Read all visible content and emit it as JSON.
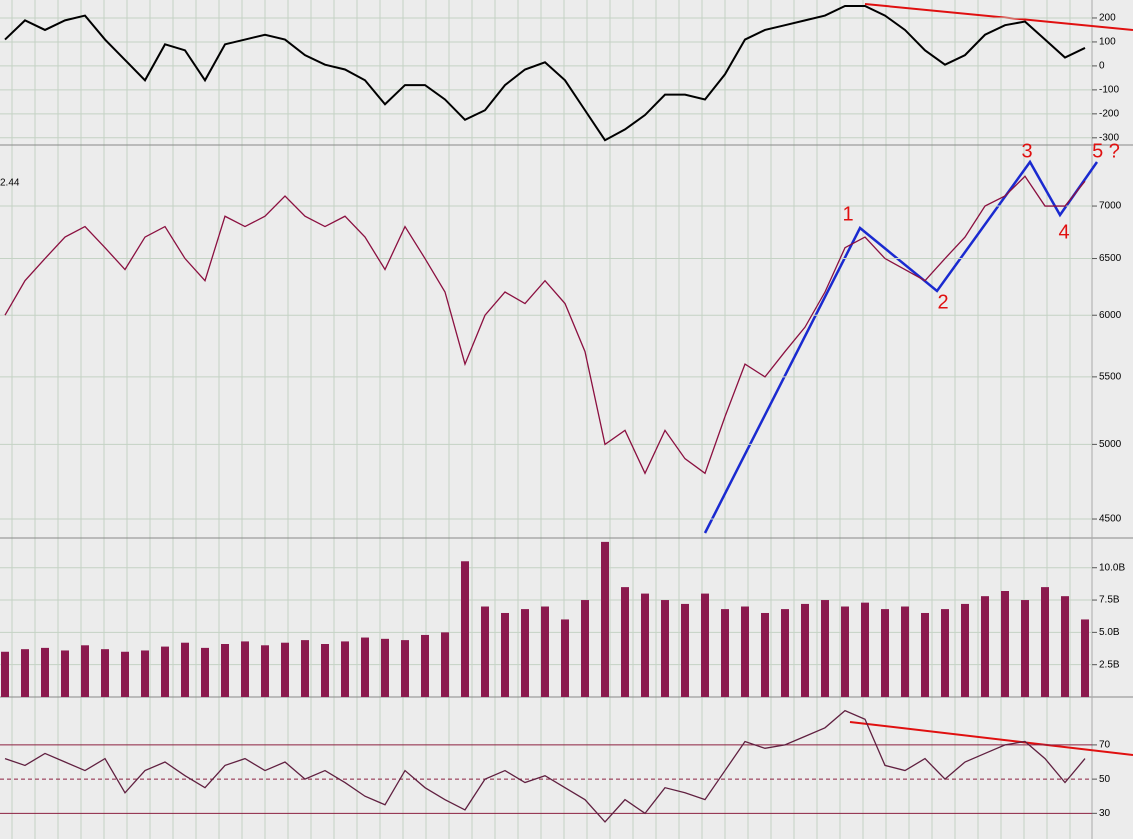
{
  "chart_data": [
    {
      "type": "line",
      "color": "#000000",
      "values": [
        110,
        190,
        150,
        190,
        210,
        110,
        25,
        -60,
        90,
        65,
        -60,
        90,
        110,
        130,
        110,
        45,
        5,
        -15,
        -60,
        -160,
        -80,
        -80,
        -140,
        -225,
        -185,
        -80,
        -15,
        15,
        -60,
        -185,
        -310,
        -265,
        -205,
        -120,
        -120,
        -140,
        -35,
        110,
        150,
        170,
        190,
        210,
        250,
        250,
        210,
        150,
        65,
        5,
        45,
        130,
        170,
        185,
        110,
        35,
        75
      ],
      "ylim": [
        -330,
        275
      ],
      "yticks": [
        200,
        100,
        0,
        -100,
        -200,
        -300
      ],
      "grid": true
    },
    {
      "type": "line",
      "color": "#8b1040",
      "log": true,
      "values": [
        6000,
        6300,
        6500,
        6700,
        6800,
        6600,
        6400,
        6700,
        6800,
        6500,
        6300,
        6900,
        6800,
        6900,
        7100,
        6900,
        6800,
        6900,
        6700,
        6400,
        6800,
        6500,
        6200,
        5600,
        6000,
        6200,
        6100,
        6300,
        6100,
        5700,
        5000,
        5100,
        4800,
        5100,
        4900,
        4800,
        5200,
        5600,
        5500,
        5700,
        5900,
        6200,
        6600,
        6700,
        6500,
        6400,
        6300,
        6500,
        6700,
        7000,
        7100,
        7300,
        7000,
        7000,
        7250
      ],
      "ylim": [
        4381,
        7630
      ],
      "yticks": [
        4500,
        5000,
        5500,
        6000,
        6500,
        7000
      ],
      "grid": true,
      "annotations": [
        "1",
        "2",
        "3",
        "4",
        "5 ?",
        "2.44"
      ]
    },
    {
      "type": "bar",
      "color": "#8b1a4e",
      "values": [
        3.5,
        3.7,
        3.8,
        3.6,
        4.0,
        3.7,
        3.5,
        3.6,
        3.9,
        4.2,
        3.8,
        4.1,
        4.3,
        4.0,
        4.2,
        4.4,
        4.1,
        4.3,
        4.6,
        4.5,
        4.4,
        4.8,
        5.0,
        10.5,
        7.0,
        6.5,
        6.8,
        7.0,
        6.0,
        7.5,
        12.0,
        8.5,
        8.0,
        7.5,
        7.2,
        8.0,
        6.8,
        7.0,
        6.5,
        6.8,
        7.2,
        7.5,
        7.0,
        7.3,
        6.8,
        7.0,
        6.5,
        6.8,
        7.2,
        7.8,
        8.2,
        7.5,
        8.5,
        7.8,
        6.0
      ],
      "ylim": [
        0,
        12.3
      ],
      "yticks": [
        {
          "value": 10,
          "label": "10.0B"
        },
        {
          "value": 7.5,
          "label": "7.5B"
        },
        {
          "value": 5,
          "label": "5.0B"
        },
        {
          "value": 2.5,
          "label": "2.5B"
        }
      ],
      "grid": true
    },
    {
      "type": "line",
      "color": "#602040",
      "values": [
        62,
        58,
        65,
        60,
        55,
        62,
        42,
        55,
        60,
        52,
        45,
        58,
        62,
        55,
        60,
        50,
        55,
        48,
        40,
        35,
        55,
        45,
        38,
        32,
        50,
        55,
        48,
        52,
        45,
        38,
        25,
        38,
        30,
        45,
        42,
        38,
        55,
        72,
        68,
        70,
        75,
        80,
        90,
        85,
        58,
        55,
        62,
        50,
        60,
        65,
        70,
        72,
        62,
        48,
        62
      ],
      "ylim": [
        15,
        98
      ],
      "yticks": [
        30,
        50,
        70
      ],
      "grid": true
    }
  ]
}
